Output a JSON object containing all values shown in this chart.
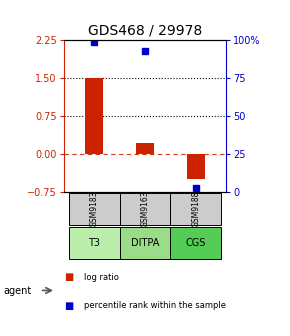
{
  "title": "GDS468 / 29978",
  "samples": [
    "GSM9183",
    "GSM9163",
    "GSM9188"
  ],
  "agents": [
    "T3",
    "DITPA",
    "CGS"
  ],
  "log_ratios": [
    1.5,
    0.22,
    -0.5
  ],
  "percentile_ranks": [
    99,
    93,
    2
  ],
  "bar_color": "#cc2200",
  "dot_color": "#0000cc",
  "ylim_left": [
    -0.75,
    2.25
  ],
  "ylim_right": [
    0,
    100
  ],
  "yticks_left": [
    -0.75,
    0,
    0.75,
    1.5,
    2.25
  ],
  "yticks_right": [
    0,
    25,
    50,
    75,
    100
  ],
  "dotted_lines": [
    0.75,
    1.5
  ],
  "dashed_line": 0.0,
  "agent_colors": [
    "#bbeeaa",
    "#99dd88",
    "#55cc55"
  ],
  "sample_box_color": "#cccccc",
  "legend_log_ratio": "log ratio",
  "legend_percentile": "percentile rank within the sample",
  "bar_width": 0.35,
  "agent_label": "agent",
  "title_fontsize": 10,
  "tick_fontsize": 7,
  "label_fontsize": 7
}
